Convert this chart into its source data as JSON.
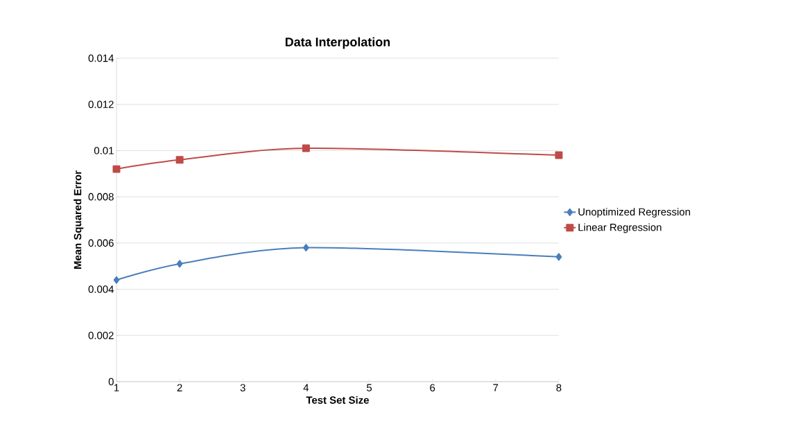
{
  "chart_data": {
    "type": "line",
    "title": "Data Interpolation",
    "xlabel": "Test Set Size",
    "ylabel": "Mean Squared Error",
    "x": [
      1,
      2,
      4,
      8
    ],
    "series": [
      {
        "name": "Unoptimized Regression",
        "color": "#4a7ebb",
        "marker": "diamond",
        "values": [
          0.0044,
          0.0051,
          0.0058,
          0.0054
        ]
      },
      {
        "name": "Linear Regression",
        "color": "#be4b48",
        "marker": "square",
        "values": [
          0.0092,
          0.0096,
          0.0101,
          0.0098
        ]
      }
    ],
    "xlim": [
      1,
      8
    ],
    "xticks": [
      1,
      2,
      3,
      4,
      5,
      6,
      7,
      8
    ],
    "ylim": [
      0,
      0.014
    ],
    "yticks": [
      0,
      0.002,
      0.004,
      0.006,
      0.008,
      0.01,
      0.012,
      0.014
    ],
    "grid": "y",
    "legend": "right"
  }
}
